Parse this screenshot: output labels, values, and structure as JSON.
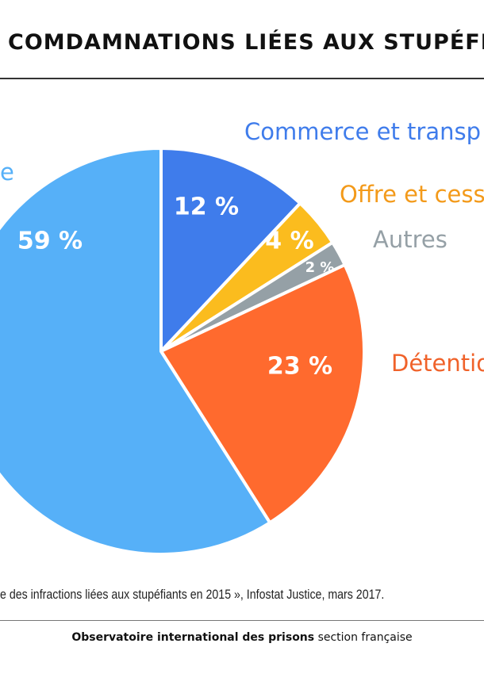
{
  "title": "COMDAMNATIONS LIÉES AUX STUPÉFIA",
  "source_text": "e des infractions liées aux stupéfiants en 2015 », Infostat Justice, mars 2017.",
  "footer": {
    "organization": "Observatoire international des prisons",
    "section": "section française"
  },
  "chart_data": {
    "type": "pie",
    "slices": [
      {
        "name": "Commerce et transp",
        "value": 12,
        "value_label": "12 %",
        "color": "#3F7CEB"
      },
      {
        "name": "Offre et cess",
        "value": 4,
        "value_label": "4 %",
        "color": "#FBBC1E"
      },
      {
        "name": "Autres",
        "value": 2,
        "value_label": "2 %",
        "color": "#95A0A6"
      },
      {
        "name": "Détentio",
        "value": 23,
        "value_label": "23 %",
        "color": "#FF6A2E"
      },
      {
        "name": "e",
        "value": 59,
        "value_label": "59 %",
        "color": "#56B0F8"
      }
    ],
    "category_label_colors": {
      "Commerce et transp": "#3F7CEB",
      "Offre et cess": "#F39A1A",
      "Autres": "#95A0A6",
      "Détentio": "#F0622A",
      "e": "#56B0F8"
    }
  }
}
